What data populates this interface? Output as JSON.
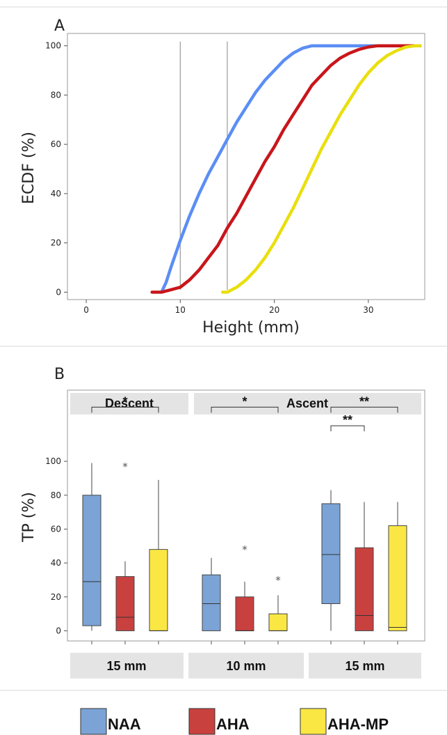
{
  "chart_data": [
    {
      "type": "line",
      "panel": "A",
      "xlabel": "Height (mm)",
      "ylabel": "ECDF (%)",
      "xlim": [
        -2,
        36
      ],
      "ylim": [
        -3,
        105
      ],
      "xticks": [
        0,
        10,
        20,
        30
      ],
      "yticks": [
        0,
        20,
        40,
        60,
        80,
        100
      ],
      "reference_lines_x": [
        10,
        15
      ],
      "grid": false,
      "series": [
        {
          "group": "NAA",
          "color": "#5b8ef5",
          "x": [
            8,
            8.5,
            9,
            10,
            11,
            12,
            13,
            14,
            15,
            16,
            17,
            18,
            19,
            20,
            21,
            22,
            23,
            24,
            25,
            26,
            30,
            35.5
          ],
          "y": [
            0,
            4,
            10,
            21,
            31,
            40,
            48,
            55,
            62,
            69,
            75,
            81,
            86,
            90,
            94,
            97,
            99,
            100,
            100,
            100,
            100,
            100
          ]
        },
        {
          "group": "AHA",
          "color": "#c8161b",
          "x": [
            7,
            8,
            9,
            10,
            11,
            12,
            13,
            14,
            15,
            16,
            17,
            18,
            19,
            20,
            21,
            22,
            23,
            24,
            25,
            26,
            27,
            28,
            29,
            30,
            31,
            32,
            33,
            35.5
          ],
          "y": [
            0,
            0,
            1,
            2,
            5,
            9,
            14,
            19,
            26,
            32,
            39,
            46,
            53,
            59,
            66,
            72,
            78,
            84,
            88,
            92,
            95,
            97,
            98.5,
            99.5,
            100,
            100,
            100,
            100
          ]
        },
        {
          "group": "AHA-MP",
          "color": "#e9df0e",
          "x": [
            14.5,
            15,
            16,
            17,
            18,
            19,
            20,
            21,
            22,
            23,
            24,
            25,
            26,
            27,
            28,
            29,
            30,
            31,
            32,
            33,
            34,
            35,
            35.5
          ],
          "y": [
            0,
            0,
            2,
            5,
            9,
            14,
            20,
            27,
            34,
            42,
            50,
            58,
            65,
            72,
            78,
            84,
            89,
            93,
            96,
            98,
            99.5,
            100,
            100
          ]
        }
      ]
    },
    {
      "type": "box",
      "panel": "B",
      "ylabel": "TP (%)",
      "ylim": [
        -6,
        142
      ],
      "yticks": [
        0,
        20,
        40,
        60,
        80,
        100
      ],
      "grid": false,
      "facets": [
        {
          "top_label": "Descent",
          "bottom_label": "15 mm",
          "boxes": [
            {
              "group": "NAA",
              "min": 0,
              "q1": 3,
              "median": 29,
              "q3": 80,
              "max": 99,
              "outliers": []
            },
            {
              "group": "AHA",
              "min": 0,
              "q1": 0,
              "median": 8,
              "q3": 32,
              "max": 41,
              "outliers": [
                98
              ]
            },
            {
              "group": "AHA-MP",
              "min": 0,
              "q1": 0,
              "median": 0,
              "q3": 48,
              "max": 89,
              "outliers": []
            }
          ],
          "significance": [
            {
              "from": 0,
              "to": 2,
              "label": "*",
              "y": 132
            }
          ]
        },
        {
          "top_label": "Ascent",
          "bottom_label": "10 mm",
          "boxes": [
            {
              "group": "NAA",
              "min": 0,
              "q1": 0,
              "median": 16,
              "q3": 33,
              "max": 43,
              "outliers": []
            },
            {
              "group": "AHA",
              "min": 0,
              "q1": 0,
              "median": 0,
              "q3": 20,
              "max": 29,
              "outliers": [
                49
              ]
            },
            {
              "group": "AHA-MP",
              "min": 0,
              "q1": 0,
              "median": 0,
              "q3": 10,
              "max": 21,
              "outliers": [
                31
              ]
            }
          ],
          "significance": [
            {
              "from": 0,
              "to": 2,
              "label": "*",
              "y": 132
            }
          ]
        },
        {
          "top_label": "",
          "bottom_label": "15 mm",
          "boxes": [
            {
              "group": "NAA",
              "min": 0,
              "q1": 16,
              "median": 45,
              "q3": 75,
              "max": 83,
              "outliers": []
            },
            {
              "group": "AHA",
              "min": 0,
              "q1": 0,
              "median": 9,
              "q3": 49,
              "max": 76,
              "outliers": []
            },
            {
              "group": "AHA-MP",
              "min": 0,
              "q1": 0,
              "median": 2,
              "q3": 62,
              "max": 76,
              "outliers": []
            }
          ],
          "significance": [
            {
              "from": 0,
              "to": 2,
              "label": "**",
              "y": 132
            },
            {
              "from": 0,
              "to": 1,
              "label": "**",
              "y": 121
            }
          ]
        }
      ]
    }
  ],
  "panel_labels": {
    "a": "A",
    "b": "B"
  },
  "legend": {
    "placement": "bottom",
    "items": [
      {
        "label": "NAA",
        "color": "#7ba3d6"
      },
      {
        "label": "AHA",
        "color": "#c9413f"
      },
      {
        "label": "AHA-MP",
        "color": "#fbe744"
      }
    ]
  },
  "colors": {
    "box_naa": "#7ba3d6",
    "box_aha": "#c9413f",
    "box_ahamp": "#fbe744",
    "strip_bg": "#e4e4e4",
    "frame": "#9a9a9a",
    "separator": "#d8d8d8"
  }
}
